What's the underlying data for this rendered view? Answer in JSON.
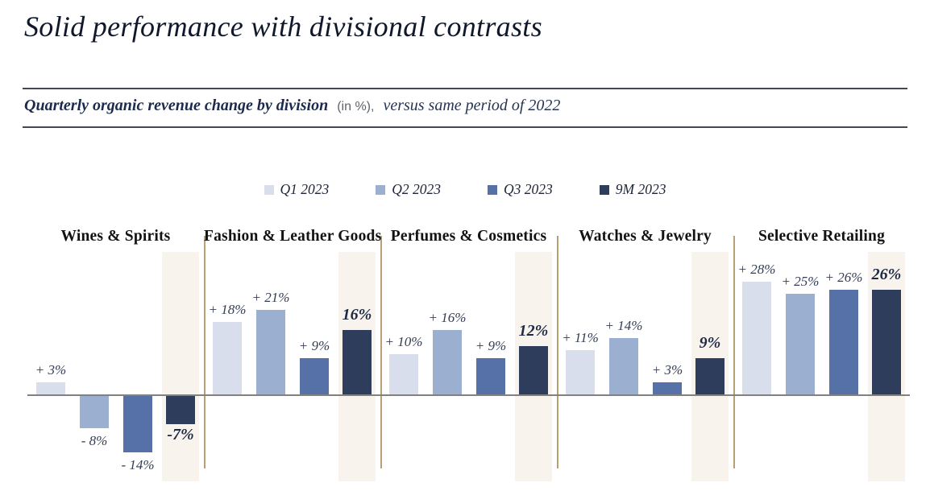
{
  "page": {
    "title": "Solid performance with divisional contrasts",
    "subtitle_bold": "Quarterly organic revenue change by division",
    "subtitle_unit": "(in %),",
    "subtitle_rest": "versus same period of 2022"
  },
  "colors": {
    "q1": "#D8DEEB",
    "q2": "#9BAFD0",
    "q3": "#5571A7",
    "m9": "#2E3D5B",
    "band": "#F8F4ED",
    "divider": "#B7A173",
    "baseline": "#818181",
    "rule": "#43474F",
    "title_text": "#10182B",
    "subtitle_text": "#1C2A4E",
    "label_text": "#333D55",
    "label_9m_text": "#1E2944"
  },
  "legend": [
    {
      "label": "Q1 2023",
      "color_key": "q1"
    },
    {
      "label": "Q2 2023",
      "color_key": "q2"
    },
    {
      "label": "Q3 2023",
      "color_key": "q3"
    },
    {
      "label": "9M 2023",
      "color_key": "m9"
    }
  ],
  "chart_data": {
    "type": "bar",
    "title": "Quarterly organic revenue change by division (in %), versus same period of 2022",
    "unit": "%",
    "ylim": [
      -14,
      28
    ],
    "grid": false,
    "y_axis_shown": false,
    "zero_baseline_shown": true,
    "legend_position": "top-center",
    "categories": [
      "Wines & Spirits",
      "Fashion & Leather Goods",
      "Perfumes & Cosmetics",
      "Watches & Jewelry",
      "Selective Retailing"
    ],
    "series": [
      {
        "name": "Q1 2023",
        "values": [
          3,
          18,
          10,
          11,
          28
        ]
      },
      {
        "name": "Q2 2023",
        "values": [
          -8,
          21,
          16,
          14,
          25
        ]
      },
      {
        "name": "Q3 2023",
        "values": [
          -14,
          9,
          9,
          3,
          26
        ]
      },
      {
        "name": "9M 2023",
        "values": [
          -7,
          16,
          12,
          9,
          26
        ]
      }
    ],
    "divisions": [
      {
        "name": "Wines & Spirits",
        "values": [
          3,
          -8,
          -14,
          -7
        ],
        "labels": [
          "+ 3%",
          "- 8%",
          "- 14%",
          "-7%"
        ]
      },
      {
        "name": "Fashion & Leather Goods",
        "values": [
          18,
          21,
          9,
          16
        ],
        "labels": [
          "+ 18%",
          "+ 21%",
          "+ 9%",
          "16%"
        ]
      },
      {
        "name": "Perfumes & Cosmetics",
        "values": [
          10,
          16,
          9,
          12
        ],
        "labels": [
          "+ 10%",
          "+ 16%",
          "+ 9%",
          "12%"
        ]
      },
      {
        "name": "Watches & Jewelry",
        "values": [
          11,
          14,
          3,
          9
        ],
        "labels": [
          "+ 11%",
          "+ 14%",
          "+ 3%",
          "9%"
        ]
      },
      {
        "name": "Selective Retailing",
        "values": [
          28,
          25,
          26,
          26
        ],
        "labels": [
          "+ 28%",
          "+ 25%",
          "+ 26%",
          "26%"
        ]
      }
    ],
    "highlighted_series": "9M 2023"
  }
}
